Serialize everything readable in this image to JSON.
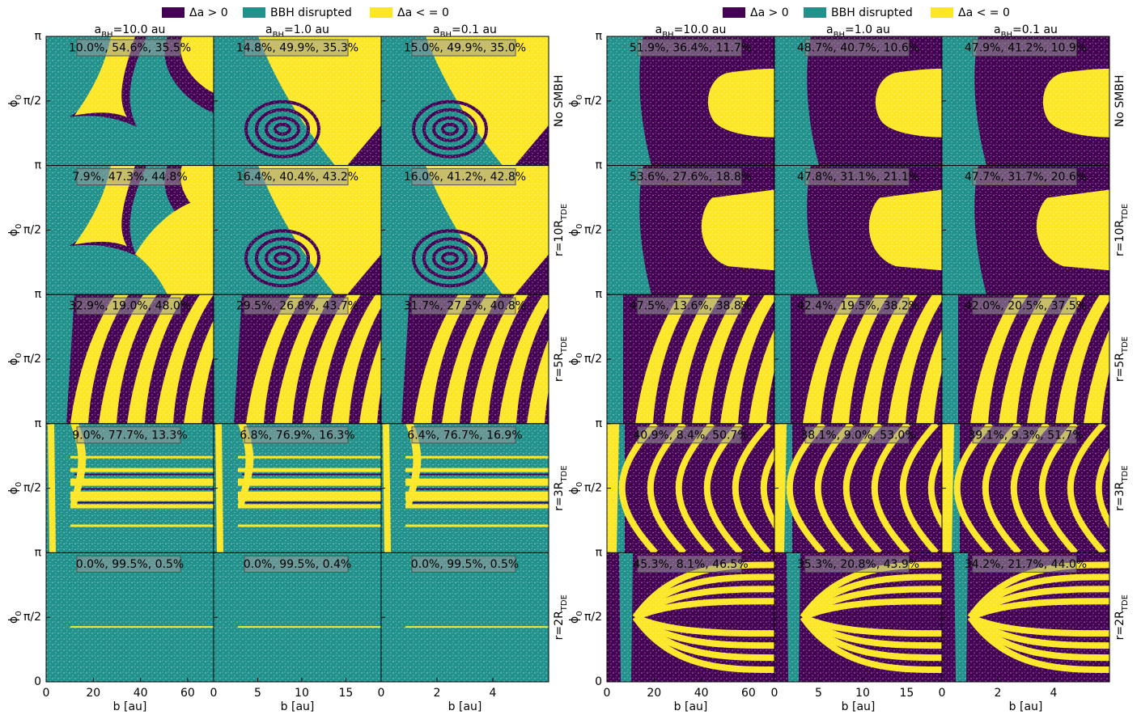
{
  "chart_data": [
    {
      "type": "map-grid",
      "legend": [
        {
          "name": "Δa > 0",
          "color": "#440154"
        },
        {
          "name": "BBH disrupted",
          "color": "#21918c"
        },
        {
          "name": "Δa < = 0",
          "color": "#fde725"
        }
      ],
      "columns": [
        {
          "title": {
            "text": "a",
            "sub": "BH",
            "rest": "=10.0 au"
          },
          "xlim": [
            0,
            71
          ],
          "xticks": [
            0,
            20,
            40,
            60
          ]
        },
        {
          "title": {
            "text": "a",
            "sub": "BH",
            "rest": "=1.0 au"
          },
          "xlim": [
            0,
            19
          ],
          "xticks": [
            0,
            5,
            10,
            15
          ]
        },
        {
          "title": {
            "text": "a",
            "sub": "BH",
            "rest": "=0.1 au"
          },
          "xlim": [
            0,
            6
          ],
          "xticks": [
            0,
            2,
            4
          ]
        }
      ],
      "x_label": "b [au]",
      "y_label": {
        "text": "ϕ",
        "sub": "0"
      },
      "ylim": [
        0,
        3.1416
      ],
      "yticks": [
        0,
        {
          "value": 1.5708,
          "label": "π/2"
        },
        {
          "value": 3.1416,
          "label": "π"
        }
      ],
      "rows": [
        {
          "label": "No SMBH",
          "annotations": [
            "10.0%, 54.6%, 35.5%",
            "14.8%, 49.9%, 35.3%",
            "15.0%, 49.9%, 35.0%"
          ]
        },
        {
          "label": {
            "text": "r=10R",
            "sub": "TDE"
          },
          "annotations": [
            "7.9%, 47.3%, 44.8%",
            "16.4%, 40.4%, 43.2%",
            "16.0%, 41.2%, 42.8%"
          ]
        },
        {
          "label": {
            "text": "r=5R",
            "sub": "TDE"
          },
          "annotations": [
            "32.9%, 19.0%, 48.0%",
            "29.5%, 26.8%, 43.7%",
            "31.7%, 27.5%, 40.8%"
          ]
        },
        {
          "label": {
            "text": "r=3R",
            "sub": "TDE"
          },
          "annotations": [
            "9.0%, 77.7%, 13.3%",
            "6.8%, 76.9%, 16.3%",
            "6.4%, 76.7%, 16.9%"
          ]
        },
        {
          "label": {
            "text": "r=2R",
            "sub": "TDE"
          },
          "annotations": [
            "0.0%, 99.5%, 0.5%",
            "0.0%, 99.5%, 0.4%",
            "0.0%, 99.5%, 0.5%"
          ]
        }
      ]
    },
    {
      "type": "map-grid",
      "legend": [
        {
          "name": "Δa > 0",
          "color": "#440154"
        },
        {
          "name": "BBH disrupted",
          "color": "#21918c"
        },
        {
          "name": "Δa < = 0",
          "color": "#fde725"
        }
      ],
      "columns": [
        {
          "title": {
            "text": "a",
            "sub": "BH",
            "rest": "=10.0 au"
          },
          "xlim": [
            0,
            71
          ],
          "xticks": [
            0,
            20,
            40,
            60
          ]
        },
        {
          "title": {
            "text": "a",
            "sub": "BH",
            "rest": "=1.0 au"
          },
          "xlim": [
            0,
            19
          ],
          "xticks": [
            0,
            5,
            10,
            15
          ]
        },
        {
          "title": {
            "text": "a",
            "sub": "BH",
            "rest": "=0.1 au"
          },
          "xlim": [
            0,
            6
          ],
          "xticks": [
            0,
            2,
            4
          ]
        }
      ],
      "x_label": "b [au]",
      "y_label": {
        "text": "ϕ",
        "sub": "0"
      },
      "ylim": [
        0,
        3.1416
      ],
      "yticks": [
        0,
        {
          "value": 1.5708,
          "label": "π/2"
        },
        {
          "value": 3.1416,
          "label": "π"
        }
      ],
      "rows": [
        {
          "label": "No SMBH",
          "annotations": [
            "51.9%, 36.4%, 11.7%",
            "48.7%, 40.7%, 10.6%",
            "47.9%, 41.2%, 10.9%"
          ]
        },
        {
          "label": {
            "text": "r=10R",
            "sub": "TDE"
          },
          "annotations": [
            "53.6%, 27.6%, 18.8%",
            "47.8%, 31.1%, 21.1%",
            "47.7%, 31.7%, 20.6%"
          ]
        },
        {
          "label": {
            "text": "r=5R",
            "sub": "TDE"
          },
          "annotations": [
            "47.5%, 13.6%, 38.8%",
            "42.4%, 19.5%, 38.2%",
            "42.0%, 20.5%, 37.5%"
          ]
        },
        {
          "label": {
            "text": "r=3R",
            "sub": "TDE"
          },
          "annotations": [
            "40.9%, 8.4%, 50.7%",
            "38.1%, 9.0%, 53.0%",
            "39.1%, 9.3%, 51.7%"
          ]
        },
        {
          "label": {
            "text": "r=2R",
            "sub": "TDE"
          },
          "annotations": [
            "45.3%, 8.1%, 46.5%",
            "35.3%, 20.8%, 43.9%",
            "34.2%, 21.7%, 44.0%"
          ]
        }
      ]
    }
  ]
}
